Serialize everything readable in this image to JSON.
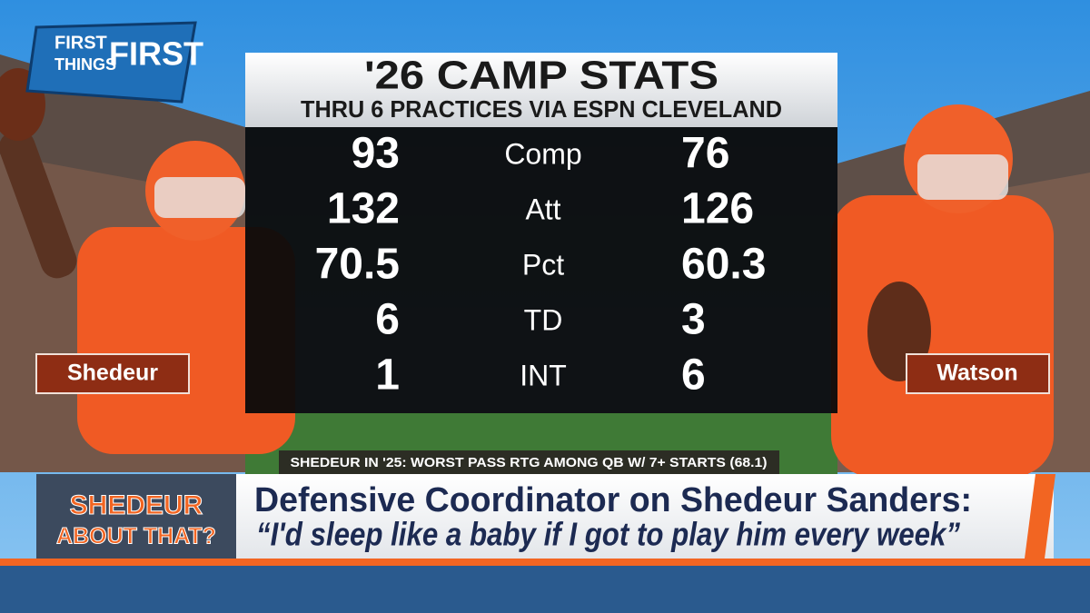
{
  "logo": {
    "lines": [
      "FIRST",
      "THINGS",
      "FIRST"
    ]
  },
  "stats": {
    "title": "'26 CAMP STATS",
    "subtitle": "THRU 6 PRACTICES VIA ESPN CLEVELAND",
    "rows": [
      {
        "left": "93",
        "label": "Comp",
        "right": "76"
      },
      {
        "left": "132",
        "label": "Att",
        "right": "126"
      },
      {
        "left": "70.5",
        "label": "Pct",
        "right": "60.3"
      },
      {
        "left": "6",
        "label": "TD",
        "right": "3"
      },
      {
        "left": "1",
        "label": "INT",
        "right": "6"
      }
    ]
  },
  "players": {
    "left": "Shedeur",
    "right": "Watson"
  },
  "note": "SHEDEUR IN '25: WORST PASS RTG AMONG QB W/ 7+ STARTS (68.1)",
  "segment": {
    "line1": "SHEDEUR",
    "line2": "ABOUT THAT?"
  },
  "headline": {
    "line1": "Defensive Coordinator on Shedeur Sanders:",
    "line2": "“I'd sleep like a baby if I got to play him every week”"
  }
}
